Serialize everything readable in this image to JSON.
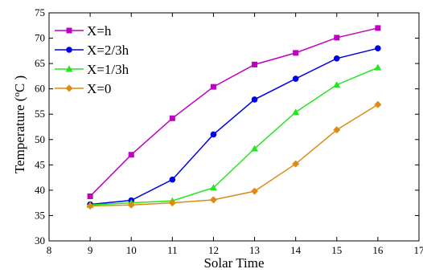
{
  "chart_data": {
    "type": "line",
    "x": [
      9,
      10,
      11,
      12,
      13,
      14,
      15,
      16
    ],
    "xlabel": "Solar Time",
    "ylabel": "Temperature (",
    "ylabel_unit_sup": "o",
    "ylabel_unit": "C )",
    "xlim": [
      8,
      17
    ],
    "ylim": [
      30,
      75
    ],
    "xticks": [
      "8",
      "9",
      "10",
      "11",
      "12",
      "13",
      "14",
      "15",
      "16",
      "17"
    ],
    "yticks": [
      "30",
      "35",
      "40",
      "45",
      "50",
      "55",
      "60",
      "65",
      "70",
      "75"
    ],
    "grid": false,
    "legend_position": "top-left",
    "series": [
      {
        "name": "X=h",
        "color": "#c000c0",
        "marker": "square",
        "values": [
          38.8,
          47.0,
          54.2,
          60.4,
          64.8,
          67.1,
          70.1,
          72.0
        ]
      },
      {
        "name": "X=2/3h",
        "color": "#0000e6",
        "marker": "circle",
        "values": [
          37.2,
          38.0,
          42.1,
          51.0,
          57.9,
          62.0,
          66.0,
          68.0
        ]
      },
      {
        "name": "X=1/3h",
        "color": "#22e622",
        "marker": "triangle",
        "values": [
          37.1,
          37.5,
          37.9,
          40.5,
          48.2,
          55.4,
          60.8,
          64.2
        ]
      },
      {
        "name": "X=0",
        "color": "#e08a14",
        "marker": "diamond",
        "values": [
          36.9,
          37.1,
          37.5,
          38.1,
          39.8,
          45.2,
          51.9,
          56.9
        ]
      }
    ]
  }
}
